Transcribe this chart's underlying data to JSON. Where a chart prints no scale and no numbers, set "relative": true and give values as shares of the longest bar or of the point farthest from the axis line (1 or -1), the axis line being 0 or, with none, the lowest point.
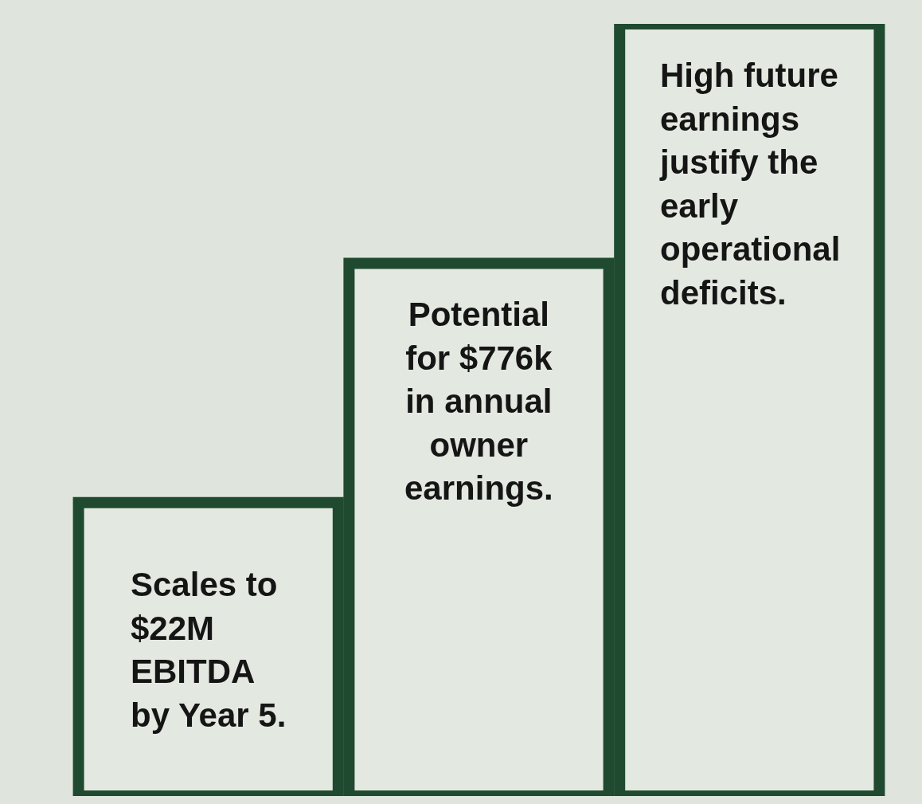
{
  "chart_data": {
    "type": "bar",
    "relative": true,
    "categories": [
      null,
      null,
      null
    ],
    "values": [
      0.38,
      0.69,
      1
    ],
    "color": "#e3e8e0",
    "annotations": [
      "Scales to\n$22M\nEBITDA\nby Year 5.",
      "Potential\nfor $776k\nin annual\nowner\nearnings.",
      "High future\nearnings\njustify the\nearly\noperational\ndeficits."
    ],
    "grid": false,
    "legend": false
  }
}
